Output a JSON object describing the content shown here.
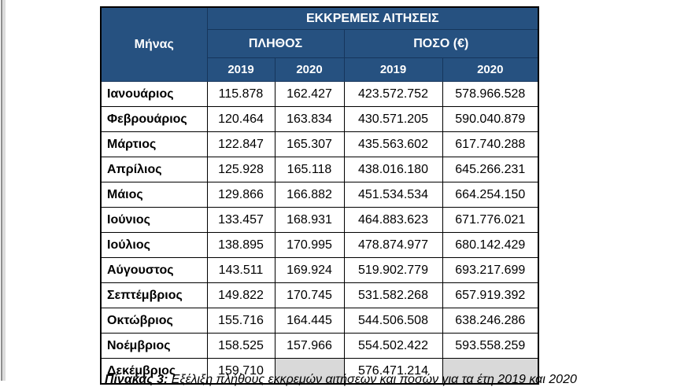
{
  "table": {
    "title": "ΕΚΚΡΕΜΕΙΣ ΑΙΤΗΣΕΙΣ",
    "month_header": "Μήνας",
    "groups": [
      {
        "label": "ΠΛΗΘΟΣ"
      },
      {
        "label": "ΠΟΣΟ (€)"
      }
    ],
    "year_headers": [
      "2019",
      "2020",
      "2019",
      "2020"
    ],
    "rows": [
      {
        "month": "Ιανουάριος",
        "plithos_2019": "115.878",
        "plithos_2020": "162.427",
        "poso_2019": "423.572.752",
        "poso_2020": "578.966.528"
      },
      {
        "month": "Φεβρουάριος",
        "plithos_2019": "120.464",
        "plithos_2020": "163.834",
        "poso_2019": "430.571.205",
        "poso_2020": "590.040.879"
      },
      {
        "month": "Μάρτιος",
        "plithos_2019": "122.847",
        "plithos_2020": "165.307",
        "poso_2019": "435.563.602",
        "poso_2020": "617.740.288"
      },
      {
        "month": "Απρίλιος",
        "plithos_2019": "125.928",
        "plithos_2020": "165.118",
        "poso_2019": "438.016.180",
        "poso_2020": "645.266.231"
      },
      {
        "month": "Μάιος",
        "plithos_2019": "129.866",
        "plithos_2020": "166.882",
        "poso_2019": "451.534.534",
        "poso_2020": "664.254.150"
      },
      {
        "month": "Ιούνιος",
        "plithos_2019": "133.457",
        "plithos_2020": "168.931",
        "poso_2019": "464.883.623",
        "poso_2020": "671.776.021"
      },
      {
        "month": "Ιούλιος",
        "plithos_2019": "138.895",
        "plithos_2020": "170.995",
        "poso_2019": "478.874.977",
        "poso_2020": "680.142.429"
      },
      {
        "month": "Αύγουστος",
        "plithos_2019": "143.511",
        "plithos_2020": "169.924",
        "poso_2019": "519.902.779",
        "poso_2020": "693.217.699"
      },
      {
        "month": "Σεπτέμβριος",
        "plithos_2019": "149.822",
        "plithos_2020": "170.745",
        "poso_2019": "531.582.268",
        "poso_2020": "657.919.392"
      },
      {
        "month": "Οκτώβριος",
        "plithos_2019": "155.716",
        "plithos_2020": "164.445",
        "poso_2019": "544.506.508",
        "poso_2020": "638.246.286"
      },
      {
        "month": "Νοέμβριος",
        "plithos_2019": "158.525",
        "plithos_2020": "157.966",
        "poso_2019": "554.502.422",
        "poso_2020": "593.558.259"
      },
      {
        "month": "Δεκέμβριος",
        "plithos_2019": "159.710",
        "plithos_2020": "",
        "poso_2019": "576.471.214",
        "poso_2020": ""
      }
    ],
    "colors": {
      "header_bg": "#265180",
      "header_text": "#ffffff",
      "header_inner_border": "#16365c",
      "cell_border": "#000000",
      "empty_cell_bg": "#d9d9d9"
    }
  },
  "caption": {
    "label": "Πίνακας 3:",
    "text": "Εξέλιξη πλήθους εκκρεμών αιτήσεων και ποσών για τα έτη 2019 και 2020"
  }
}
